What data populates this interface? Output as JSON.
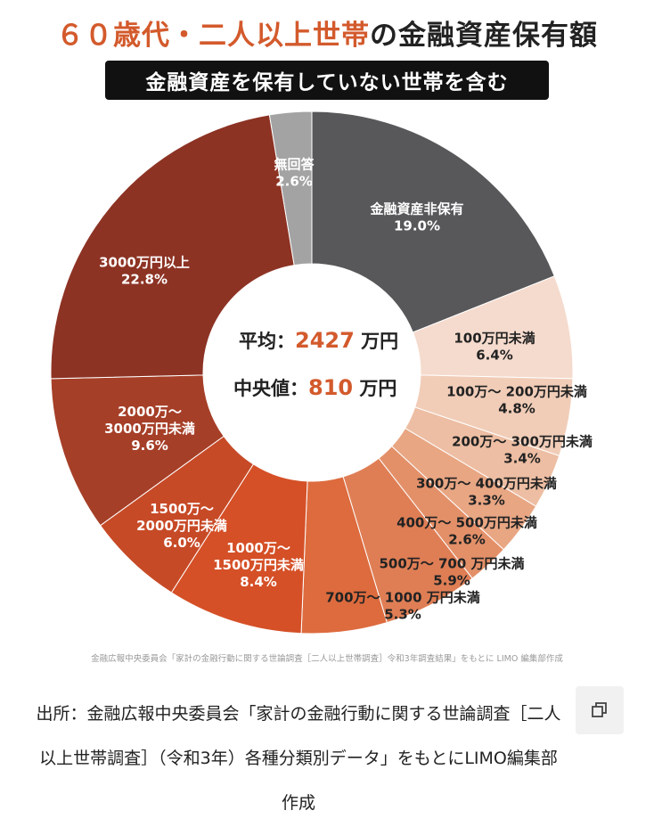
{
  "title": {
    "accent": "６０歳代・二人以上世帯",
    "rest": "の金融資産保有額"
  },
  "subtitle": "金融資産を保有していない世帯を含む",
  "center": {
    "avg_label": "平均：",
    "avg_value": "2427",
    "avg_unit": "万円",
    "median_label": "中央値：",
    "median_value": "810",
    "median_unit": "万円"
  },
  "chart_data": {
    "type": "pie",
    "categories": [
      "金融資産非保有",
      "100万円未満",
      "100万～ 200万円未満",
      "200万～ 300万円未満",
      "300万～ 400万円未満",
      "400万～ 500万円未満",
      "500万～ 700 万円未満",
      "700万～ 1000 万円未満",
      "1000万～ 1500万円未満",
      "1500万～ 2000万円未満",
      "2000万～ 3000万円未満",
      "3000万円以上",
      "無回答"
    ],
    "values": [
      19.0,
      6.4,
      4.8,
      3.4,
      3.3,
      2.6,
      5.9,
      5.3,
      8.4,
      6.0,
      9.6,
      22.8,
      2.6
    ],
    "labels": [
      "19.0%",
      "6.4%",
      "4.8%",
      "3.4%",
      "3.3%",
      "2.6%",
      "5.9%",
      "5.3%",
      "8.4%",
      "6.0%",
      "9.6%",
      "22.8%",
      "2.6%"
    ],
    "colors": [
      "#58585a",
      "#f5dbcd",
      "#f1cdb8",
      "#edbea3",
      "#e8a683",
      "#e39069",
      "#df7e55",
      "#dd6b3e",
      "#d55027",
      "#c74a27",
      "#a63f28",
      "#8d3324",
      "#a3a3a3"
    ],
    "text_colors": [
      "#ffffff",
      "#222222",
      "#222222",
      "#222222",
      "#222222",
      "#222222",
      "#222222",
      "#222222",
      "#ffffff",
      "#ffffff",
      "#ffffff",
      "#ffffff",
      "#ffffff"
    ]
  },
  "source_small": "金融広報中央委員会「家計の金融行動に関する世論調査［二人以上世帯調査］令和3年調査結果」をもとに LIMO 編集部作成",
  "source_main": "出所：金融広報中央委員会「家計の金融行動に関する世論調査［二人以上世帯調査］（令和3年）各種分類別データ」をもとにLIMO編集部作成",
  "copy_icon": "copy-icon"
}
